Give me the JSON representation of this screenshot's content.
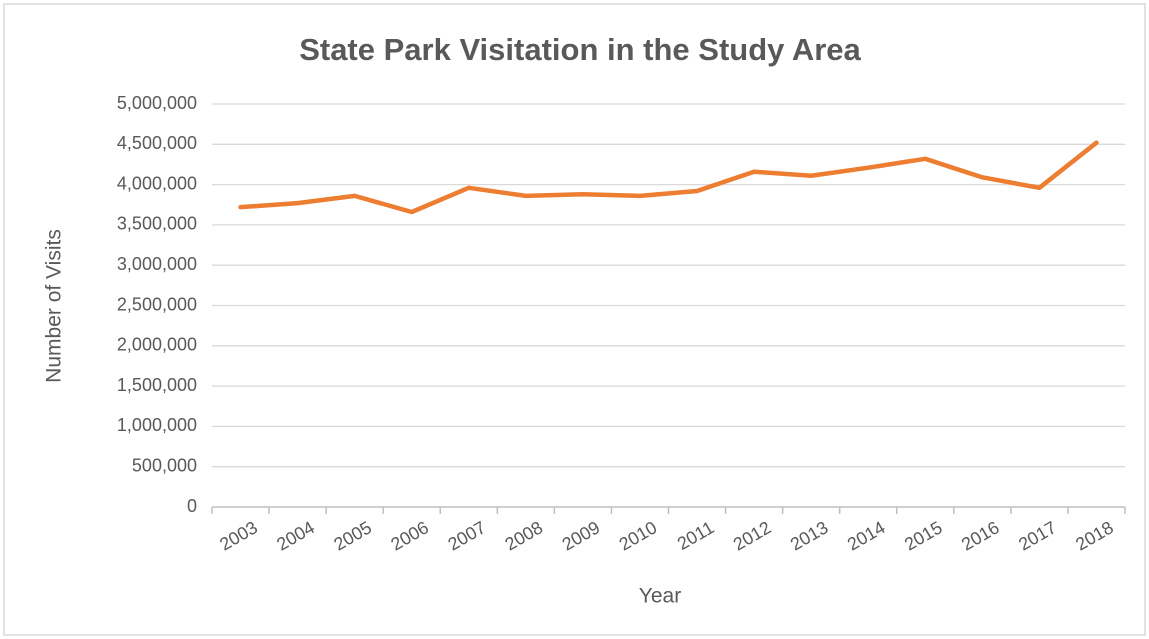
{
  "chart_data": {
    "type": "line",
    "title": "State Park Visitation in the Study Area",
    "x_label": "Year",
    "y_label": "Number of Visits",
    "categories": [
      "2003",
      "2004",
      "2005",
      "2006",
      "2007",
      "2008",
      "2009",
      "2010",
      "2011",
      "2012",
      "2013",
      "2014",
      "2015",
      "2016",
      "2017",
      "2018"
    ],
    "values": [
      3720000,
      3770000,
      3860000,
      3660000,
      3960000,
      3860000,
      3880000,
      3860000,
      3920000,
      4160000,
      4110000,
      4210000,
      4320000,
      4090000,
      3960000,
      4520000
    ],
    "color": "#ed7d31",
    "ylim": [
      0,
      5000000
    ],
    "yticks": [
      0,
      {
        "value": 500000,
        "label": "500,000"
      },
      {
        "value": 1000000,
        "label": "1,000,000"
      },
      {
        "value": 1500000,
        "label": "1,500,000"
      },
      {
        "value": 2000000,
        "label": "2,000,000"
      },
      {
        "value": 2500000,
        "label": "2,500,000"
      },
      {
        "value": 3000000,
        "label": "3,000,000"
      },
      {
        "value": 3500000,
        "label": "3,500,000"
      },
      {
        "value": 4000000,
        "label": "4,000,000"
      },
      {
        "value": 4500000,
        "label": "4,500,000"
      },
      {
        "value": 5000000,
        "label": "5,000,000"
      }
    ],
    "grid": true
  }
}
